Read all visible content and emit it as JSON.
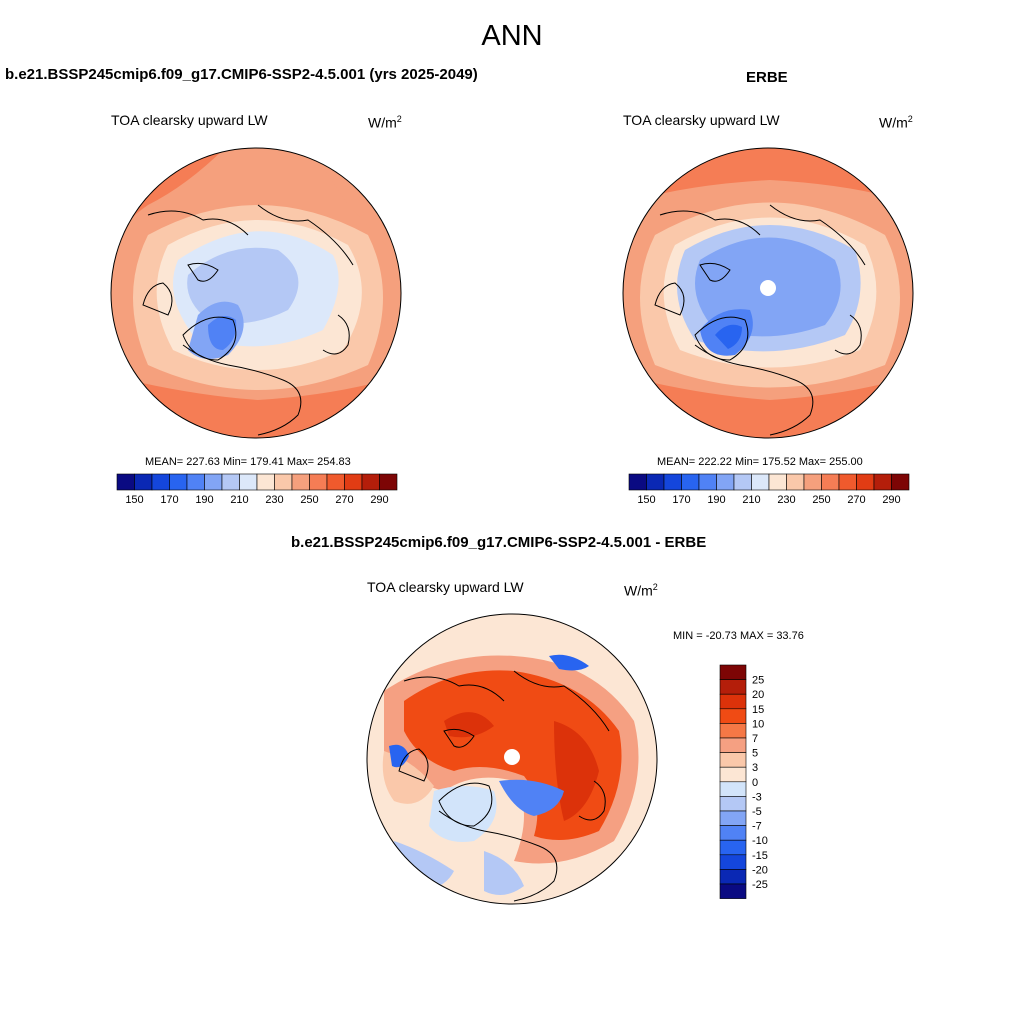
{
  "figure": {
    "title": "ANN"
  },
  "colors": {
    "abs_scale": [
      "#0a0a82",
      "#0a28b4",
      "#1446dc",
      "#2864f0",
      "#5082f5",
      "#82a5f5",
      "#b4c8f5",
      "#dce8fa",
      "#fce6d4",
      "#fac8aa",
      "#f5a07d",
      "#f57d55",
      "#f05a2d",
      "#e13c14",
      "#b41e0a",
      "#7d0505"
    ],
    "diff_scale": [
      "#7d0505",
      "#b41e0a",
      "#dc320a",
      "#f04b14",
      "#f57846",
      "#f5a082",
      "#fac8aa",
      "#fce6d4",
      "#d2e4fa",
      "#b4c8f5",
      "#82a5f5",
      "#5082f5",
      "#2864f0",
      "#1446dc",
      "#0a28b4",
      "#0a0a82"
    ]
  },
  "panels": {
    "model": {
      "title": "b.e21.BSSP245cmip6.f09_g17.CMIP6-SSP2-4.5.001 (yrs 2025-2049)",
      "variable": "TOA clearsky upward LW",
      "units_base": "W/m",
      "units_exp": "2",
      "stats": "MEAN= 227.63  Min= 179.41  Max= 254.83",
      "mean": 227.63,
      "min": 179.41,
      "max": 254.83
    },
    "obs": {
      "title": "ERBE",
      "variable": "TOA clearsky upward LW",
      "units_base": "W/m",
      "units_exp": "2",
      "stats": "MEAN= 222.22  Min= 175.52  Max= 255.00",
      "mean": 222.22,
      "min": 175.52,
      "max": 255.0
    },
    "diff": {
      "title": "b.e21.BSSP245cmip6.f09_g17.CMIP6-SSP2-4.5.001 - ERBE",
      "variable": "TOA clearsky upward LW",
      "units_base": "W/m",
      "units_exp": "2",
      "stats": "MIN = -20.73 MAX =  33.76",
      "min": -20.73,
      "max": 33.76
    }
  },
  "colorbar_abs": {
    "labels": [
      "150",
      "170",
      "190",
      "210",
      "230",
      "250",
      "270",
      "290"
    ]
  },
  "colorbar_diff": {
    "labels": [
      "25",
      "20",
      "15",
      "10",
      "7",
      "5",
      "3",
      "0",
      "-3",
      "-5",
      "-7",
      "-10",
      "-15",
      "-20",
      "-25"
    ]
  }
}
